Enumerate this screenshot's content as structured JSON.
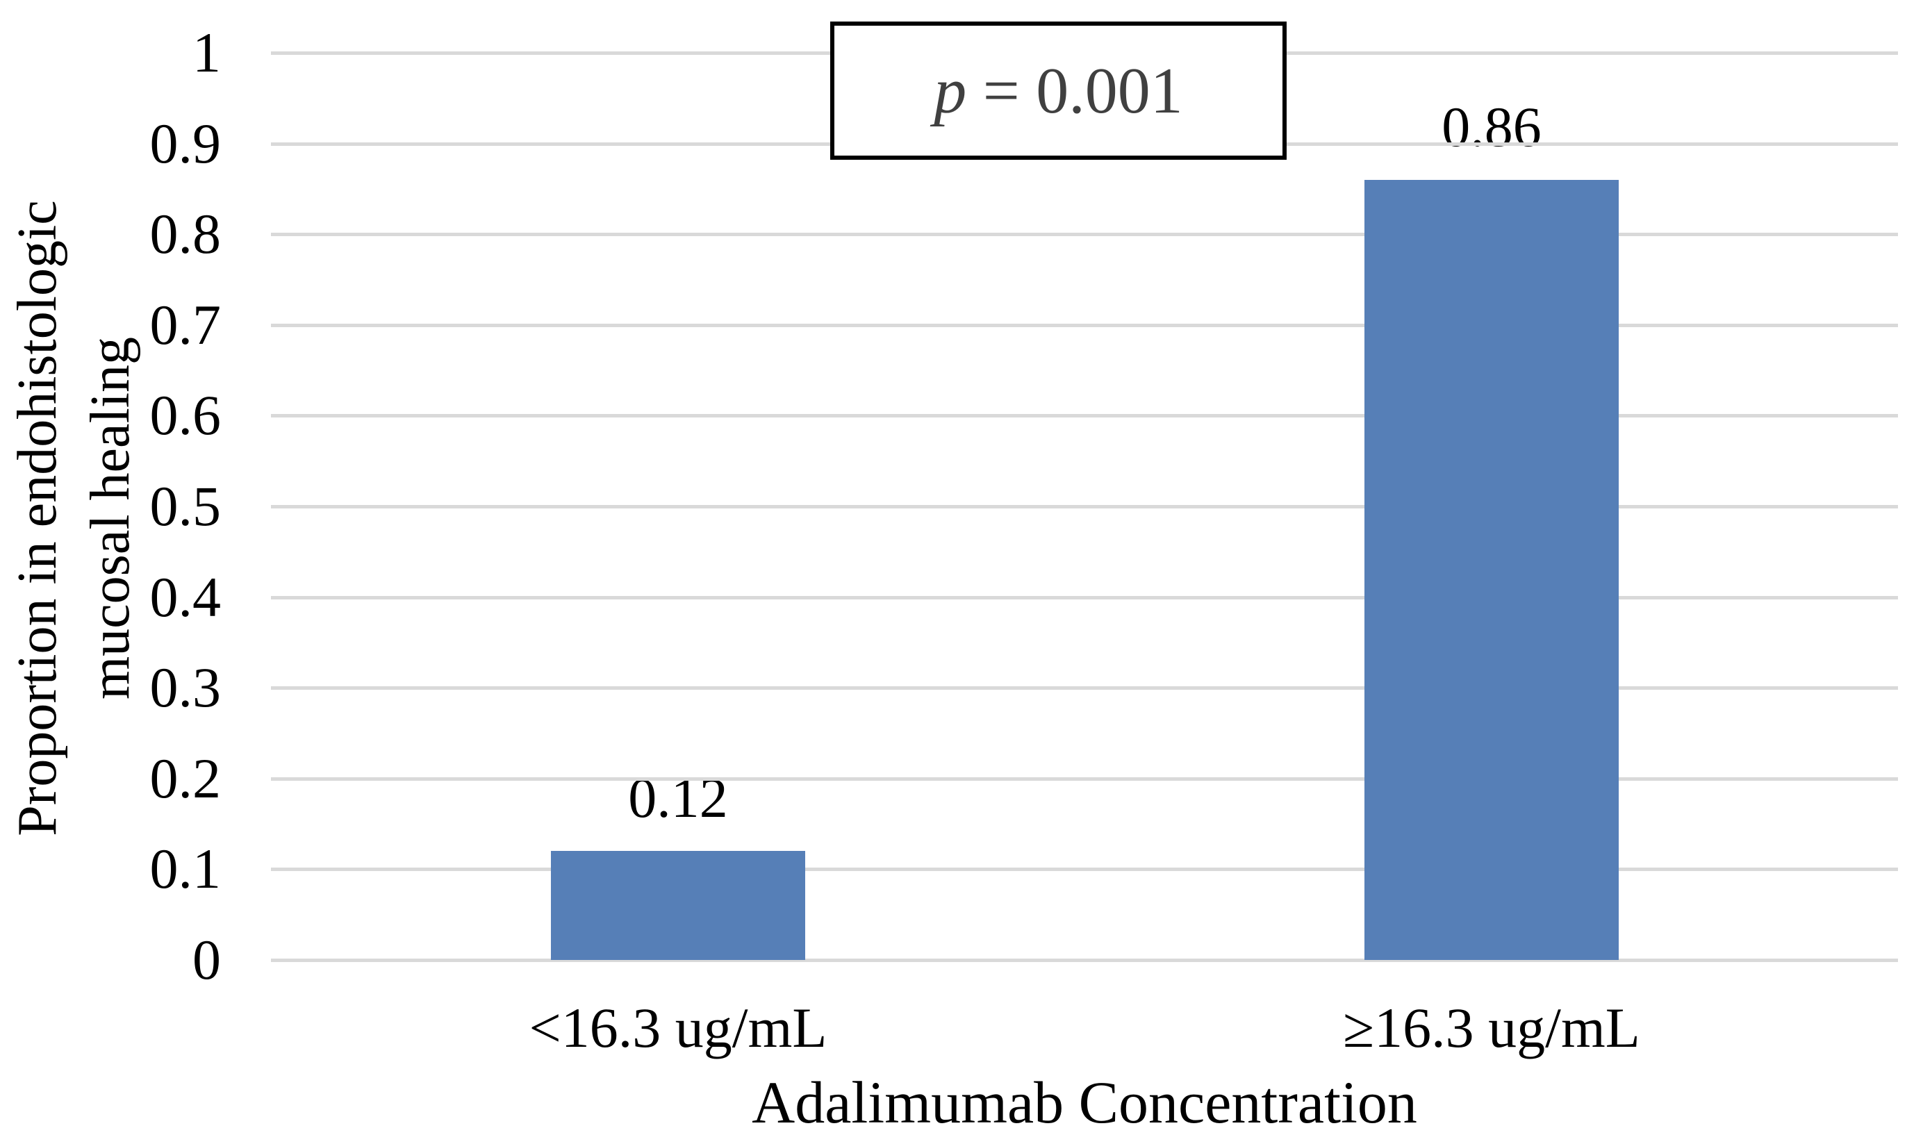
{
  "chart_data": {
    "type": "bar",
    "title": "",
    "categories": [
      "<16.3 ug/mL",
      "≥16.3 ug/mL"
    ],
    "values": [
      0.12,
      0.86
    ],
    "value_labels": [
      "0.12",
      "0.86"
    ],
    "xlabel": "Adalimumab Concentration",
    "ylabel": "Proportion in endohistologic mucosal healing",
    "ylabel_lines": [
      "Proportion in endohistologic",
      "mucosal healing"
    ],
    "ylim": [
      0,
      1
    ],
    "ytick_step": 0.1,
    "yticks": [
      0,
      0.1,
      0.2,
      0.3,
      0.4,
      0.5,
      0.6,
      0.7,
      0.8,
      0.9,
      1
    ],
    "ytick_labels": [
      "0",
      "0.1",
      "0.2",
      "0.3",
      "0.4",
      "0.5",
      "0.6",
      "0.7",
      "0.8",
      "0.9",
      "1"
    ],
    "grid": "horizontal",
    "legend": "none",
    "annotation": {
      "full": "p = 0.001",
      "symbol": "p",
      "rest": " = 0.001"
    },
    "colors": {
      "bar": "#567FB7",
      "gridline": "#D9D9D9",
      "annotation_text": "#404040",
      "annotation_border": "#000000",
      "text": "#000000",
      "background": "#FFFFFF"
    }
  }
}
